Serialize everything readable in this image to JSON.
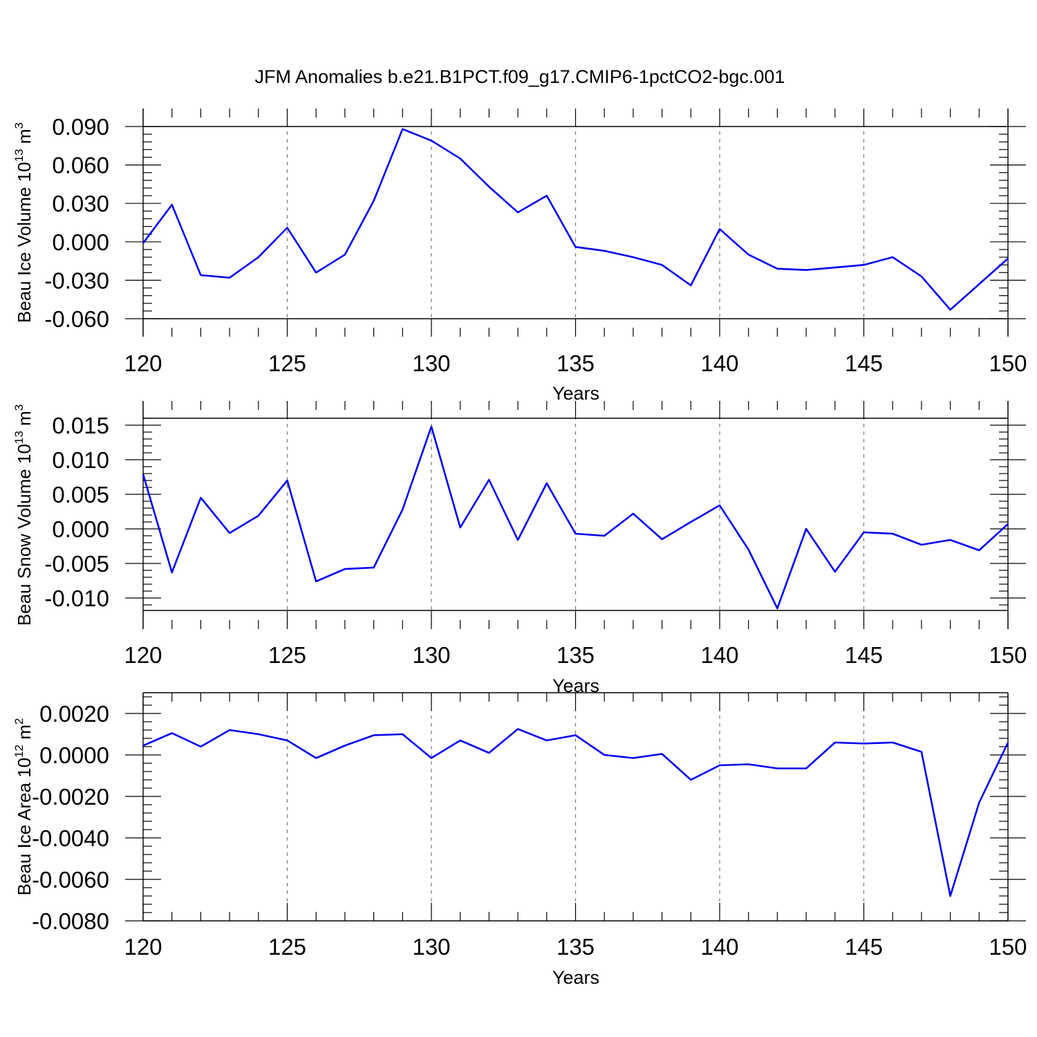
{
  "title": "JFM Anomalies b.e21.B1PCT.f09_g17.CMIP6-1pctCO2-bgc.001",
  "chart_data": [
    {
      "type": "line",
      "ylabel": "Beau Ice Volume 10",
      "ylabel_exp": "13",
      "ylabel_unit": "m",
      "ylabel_unit_exp": "3",
      "xlabel": "Years",
      "xlim": [
        120,
        150
      ],
      "ylim": [
        -0.06,
        0.09
      ],
      "y_ticks": [
        "0.090",
        "0.060",
        "0.030",
        "0.000",
        "-0.030",
        "-0.060"
      ],
      "y_tick_values": [
        0.09,
        0.06,
        0.03,
        0.0,
        -0.03,
        -0.06
      ],
      "x_ticks": [
        "120",
        "125",
        "130",
        "135",
        "140",
        "145",
        "150"
      ],
      "grid": "vertical dashed at major x ticks",
      "series": [
        {
          "color": "#0000ee",
          "x": [
            120,
            121,
            122,
            123,
            124,
            125,
            126,
            127,
            128,
            129,
            130,
            131,
            132,
            133,
            134,
            135,
            136,
            137,
            138,
            139,
            140,
            141,
            142,
            143,
            144,
            145,
            146,
            147,
            148,
            149,
            150
          ],
          "values": [
            -0.001,
            0.029,
            -0.026,
            -0.028,
            -0.012,
            0.011,
            -0.024,
            -0.01,
            0.032,
            0.088,
            0.079,
            0.065,
            0.043,
            0.023,
            0.036,
            -0.004,
            -0.007,
            -0.012,
            -0.018,
            -0.034,
            0.01,
            -0.01,
            -0.021,
            -0.022,
            -0.02,
            -0.018,
            -0.012,
            -0.027,
            -0.053,
            -0.033,
            -0.013
          ]
        }
      ]
    },
    {
      "type": "line",
      "ylabel": "Beau Snow Volume 10",
      "ylabel_exp": "13",
      "ylabel_unit": "m",
      "ylabel_unit_exp": "3",
      "xlabel": "Years",
      "xlim": [
        120,
        150
      ],
      "ylim": [
        -0.0118,
        0.016
      ],
      "y_ticks": [
        "0.015",
        "0.010",
        "0.005",
        "0.000",
        "-0.005",
        "-0.010"
      ],
      "y_tick_values": [
        0.015,
        0.01,
        0.005,
        0.0,
        -0.005,
        -0.01
      ],
      "x_ticks": [
        "120",
        "125",
        "130",
        "135",
        "140",
        "145",
        "150"
      ],
      "grid": "vertical dashed at major x ticks",
      "series": [
        {
          "color": "#0000ee",
          "x": [
            120,
            121,
            122,
            123,
            124,
            125,
            126,
            127,
            128,
            129,
            130,
            131,
            132,
            133,
            134,
            135,
            136,
            137,
            138,
            139,
            140,
            141,
            142,
            143,
            144,
            145,
            146,
            147,
            148,
            149,
            150
          ],
          "values": [
            0.0079,
            -0.0063,
            0.0045,
            -0.0006,
            0.0019,
            0.007,
            -0.0076,
            -0.0058,
            -0.0056,
            0.0028,
            0.0148,
            0.0002,
            0.0071,
            -0.0016,
            0.0066,
            -0.0007,
            -0.001,
            0.0022,
            -0.0015,
            0.001,
            0.0034,
            -0.003,
            -0.0115,
            0.0,
            -0.0062,
            -0.0005,
            -0.0007,
            -0.0023,
            -0.0016,
            -0.0031,
            0.0007
          ]
        }
      ]
    },
    {
      "type": "line",
      "ylabel": "Beau Ice Area 10",
      "ylabel_exp": "12",
      "ylabel_unit": "m",
      "ylabel_unit_exp": "2",
      "xlabel": "Years",
      "xlim": [
        120,
        150
      ],
      "ylim": [
        -0.008,
        0.003
      ],
      "y_ticks": [
        "0.0020",
        "0.0000",
        "-0.0020",
        "-0.0040",
        "-0.0060",
        "-0.0080"
      ],
      "y_tick_values": [
        0.002,
        0.0,
        -0.002,
        -0.004,
        -0.006,
        -0.008
      ],
      "x_ticks": [
        "120",
        "125",
        "130",
        "135",
        "140",
        "145",
        "150"
      ],
      "grid": "vertical dashed at major x ticks",
      "series": [
        {
          "color": "#0000ee",
          "x": [
            120,
            121,
            122,
            123,
            124,
            125,
            126,
            127,
            128,
            129,
            130,
            131,
            132,
            133,
            134,
            135,
            136,
            137,
            138,
            139,
            140,
            141,
            142,
            143,
            144,
            145,
            146,
            147,
            148,
            149,
            150
          ],
          "values": [
            0.00045,
            0.00105,
            0.0004,
            0.0012,
            0.001,
            0.0007,
            -0.00015,
            0.00045,
            0.00095,
            0.001,
            -0.00015,
            0.0007,
            0.0001,
            0.00125,
            0.0007,
            0.00095,
            0.0,
            -0.00015,
            5e-05,
            -0.0012,
            -0.0005,
            -0.00045,
            -0.00065,
            -0.00065,
            0.0006,
            0.00055,
            0.0006,
            0.00015,
            -0.0068,
            -0.0023,
            0.0006
          ]
        }
      ]
    }
  ]
}
